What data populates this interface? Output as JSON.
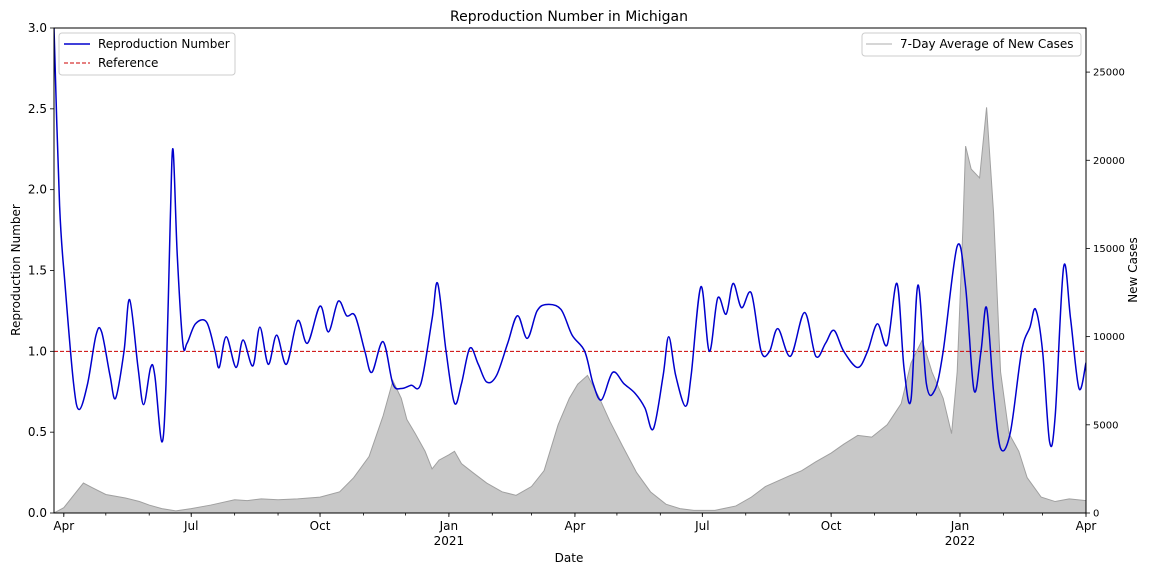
{
  "chart_data": {
    "type": "line",
    "title": "Reproduction Number in Michigan",
    "xlabel": "Date",
    "ylabel": "Reproduction Number",
    "y2label": "New Cases",
    "xlim": [
      "2020-03-25",
      "2022-04-01"
    ],
    "ylim": [
      0,
      3.0
    ],
    "y2lim": [
      0,
      27500
    ],
    "grid": false,
    "x_ticks_major": [
      {
        "date": "2020-04-01",
        "label": "Apr",
        "sub": ""
      },
      {
        "date": "2020-07-01",
        "label": "Jul",
        "sub": ""
      },
      {
        "date": "2020-10-01",
        "label": "Oct",
        "sub": ""
      },
      {
        "date": "2021-01-01",
        "label": "Jan",
        "sub": "2021"
      },
      {
        "date": "2021-04-01",
        "label": "Apr",
        "sub": ""
      },
      {
        "date": "2021-07-01",
        "label": "Jul",
        "sub": ""
      },
      {
        "date": "2021-10-01",
        "label": "Oct",
        "sub": ""
      },
      {
        "date": "2022-01-01",
        "label": "Jan",
        "sub": "2022"
      },
      {
        "date": "2022-04-01",
        "label": "Apr",
        "sub": ""
      }
    ],
    "y_ticks": [
      "0.0",
      "0.5",
      "1.0",
      "1.5",
      "2.0",
      "2.5",
      "3.0"
    ],
    "y2_ticks": [
      "0",
      "5000",
      "10000",
      "15000",
      "20000",
      "25000"
    ],
    "legend_left": {
      "placement": "top-left",
      "entries": [
        "Reproduction Number",
        "Reference"
      ]
    },
    "legend_right": {
      "placement": "top-right",
      "entries": [
        "7-Day Average of New Cases"
      ]
    },
    "colors": {
      "rt": "#0000cd",
      "reference": "#cc0000",
      "cases_fill": "#c8c8c8",
      "cases_line": "#a0a0a0"
    },
    "reference_value": 1.0,
    "series": [
      {
        "name": "Reproduction Number",
        "axis": "left",
        "points": [
          [
            "2020-03-25",
            3.0
          ],
          [
            "2020-03-29",
            1.9
          ],
          [
            "2020-04-02",
            1.4
          ],
          [
            "2020-04-08",
            0.8
          ],
          [
            "2020-04-12",
            0.64
          ],
          [
            "2020-04-18",
            0.8
          ],
          [
            "2020-04-24",
            1.1
          ],
          [
            "2020-04-28",
            1.12
          ],
          [
            "2020-05-04",
            0.85
          ],
          [
            "2020-05-08",
            0.71
          ],
          [
            "2020-05-14",
            1.0
          ],
          [
            "2020-05-18",
            1.32
          ],
          [
            "2020-05-24",
            0.9
          ],
          [
            "2020-05-28",
            0.67
          ],
          [
            "2020-06-02",
            0.9
          ],
          [
            "2020-06-05",
            0.85
          ],
          [
            "2020-06-10",
            0.44
          ],
          [
            "2020-06-13",
            0.8
          ],
          [
            "2020-06-16",
            1.8
          ],
          [
            "2020-06-18",
            2.25
          ],
          [
            "2020-06-21",
            1.6
          ],
          [
            "2020-06-25",
            1.05
          ],
          [
            "2020-06-28",
            1.05
          ],
          [
            "2020-07-04",
            1.17
          ],
          [
            "2020-07-12",
            1.18
          ],
          [
            "2020-07-18",
            1.0
          ],
          [
            "2020-07-21",
            0.9
          ],
          [
            "2020-07-26",
            1.09
          ],
          [
            "2020-08-02",
            0.9
          ],
          [
            "2020-08-07",
            1.07
          ],
          [
            "2020-08-14",
            0.91
          ],
          [
            "2020-08-19",
            1.15
          ],
          [
            "2020-08-25",
            0.92
          ],
          [
            "2020-08-31",
            1.1
          ],
          [
            "2020-09-07",
            0.92
          ],
          [
            "2020-09-15",
            1.19
          ],
          [
            "2020-09-22",
            1.05
          ],
          [
            "2020-10-01",
            1.28
          ],
          [
            "2020-10-07",
            1.12
          ],
          [
            "2020-10-14",
            1.31
          ],
          [
            "2020-10-20",
            1.22
          ],
          [
            "2020-10-26",
            1.22
          ],
          [
            "2020-11-02",
            1.0
          ],
          [
            "2020-11-07",
            0.87
          ],
          [
            "2020-11-15",
            1.06
          ],
          [
            "2020-11-22",
            0.8
          ],
          [
            "2020-11-28",
            0.77
          ],
          [
            "2020-12-05",
            0.79
          ],
          [
            "2020-12-12",
            0.8
          ],
          [
            "2020-12-20",
            1.2
          ],
          [
            "2020-12-24",
            1.42
          ],
          [
            "2020-12-30",
            1.0
          ],
          [
            "2021-01-05",
            0.68
          ],
          [
            "2021-01-10",
            0.8
          ],
          [
            "2021-01-16",
            1.02
          ],
          [
            "2021-01-22",
            0.92
          ],
          [
            "2021-01-28",
            0.81
          ],
          [
            "2021-02-04",
            0.85
          ],
          [
            "2021-02-12",
            1.05
          ],
          [
            "2021-02-19",
            1.22
          ],
          [
            "2021-02-26",
            1.08
          ],
          [
            "2021-03-05",
            1.25
          ],
          [
            "2021-03-12",
            1.29
          ],
          [
            "2021-03-22",
            1.26
          ],
          [
            "2021-03-30",
            1.1
          ],
          [
            "2021-04-08",
            1.0
          ],
          [
            "2021-04-14",
            0.8
          ],
          [
            "2021-04-20",
            0.7
          ],
          [
            "2021-04-28",
            0.87
          ],
          [
            "2021-05-06",
            0.8
          ],
          [
            "2021-05-14",
            0.74
          ],
          [
            "2021-05-21",
            0.65
          ],
          [
            "2021-05-27",
            0.52
          ],
          [
            "2021-06-03",
            0.85
          ],
          [
            "2021-06-07",
            1.09
          ],
          [
            "2021-06-12",
            0.85
          ],
          [
            "2021-06-19",
            0.66
          ],
          [
            "2021-06-23",
            0.85
          ],
          [
            "2021-06-30",
            1.4
          ],
          [
            "2021-07-06",
            1.0
          ],
          [
            "2021-07-12",
            1.33
          ],
          [
            "2021-07-18",
            1.23
          ],
          [
            "2021-07-23",
            1.42
          ],
          [
            "2021-07-29",
            1.27
          ],
          [
            "2021-08-05",
            1.36
          ],
          [
            "2021-08-12",
            1.0
          ],
          [
            "2021-08-18",
            1.0
          ],
          [
            "2021-08-24",
            1.14
          ],
          [
            "2021-09-02",
            0.97
          ],
          [
            "2021-09-12",
            1.24
          ],
          [
            "2021-09-20",
            0.97
          ],
          [
            "2021-09-27",
            1.05
          ],
          [
            "2021-10-03",
            1.13
          ],
          [
            "2021-10-10",
            1.0
          ],
          [
            "2021-10-20",
            0.9
          ],
          [
            "2021-10-27",
            1.0
          ],
          [
            "2021-11-03",
            1.17
          ],
          [
            "2021-11-10",
            1.04
          ],
          [
            "2021-11-17",
            1.42
          ],
          [
            "2021-11-22",
            0.9
          ],
          [
            "2021-11-27",
            0.7
          ],
          [
            "2021-12-02",
            1.41
          ],
          [
            "2021-12-08",
            0.8
          ],
          [
            "2021-12-14",
            0.76
          ],
          [
            "2021-12-20",
            1.0
          ],
          [
            "2021-12-30",
            1.65
          ],
          [
            "2022-01-05",
            1.4
          ],
          [
            "2022-01-11",
            0.76
          ],
          [
            "2022-01-16",
            1.0
          ],
          [
            "2022-01-20",
            1.27
          ],
          [
            "2022-01-25",
            0.75
          ],
          [
            "2022-01-30",
            0.4
          ],
          [
            "2022-02-06",
            0.5
          ],
          [
            "2022-02-14",
            1.0
          ],
          [
            "2022-02-20",
            1.15
          ],
          [
            "2022-02-24",
            1.26
          ],
          [
            "2022-03-01",
            1.0
          ],
          [
            "2022-03-06",
            0.44
          ],
          [
            "2022-03-10",
            0.6
          ],
          [
            "2022-03-16",
            1.52
          ],
          [
            "2022-03-21",
            1.2
          ],
          [
            "2022-03-27",
            0.77
          ],
          [
            "2022-04-01",
            0.93
          ]
        ]
      },
      {
        "name": "7-Day Average of New Cases",
        "axis": "right",
        "points": [
          [
            "2020-03-25",
            0
          ],
          [
            "2020-04-01",
            300
          ],
          [
            "2020-04-08",
            1000
          ],
          [
            "2020-04-15",
            1700
          ],
          [
            "2020-04-21",
            1450
          ],
          [
            "2020-05-01",
            1050
          ],
          [
            "2020-05-15",
            850
          ],
          [
            "2020-05-25",
            650
          ],
          [
            "2020-06-01",
            450
          ],
          [
            "2020-06-10",
            250
          ],
          [
            "2020-06-20",
            120
          ],
          [
            "2020-07-01",
            250
          ],
          [
            "2020-07-15",
            450
          ],
          [
            "2020-08-01",
            750
          ],
          [
            "2020-08-10",
            700
          ],
          [
            "2020-08-20",
            800
          ],
          [
            "2020-09-01",
            750
          ],
          [
            "2020-09-15",
            800
          ],
          [
            "2020-10-01",
            900
          ],
          [
            "2020-10-15",
            1200
          ],
          [
            "2020-10-25",
            2000
          ],
          [
            "2020-11-05",
            3200
          ],
          [
            "2020-11-15",
            5500
          ],
          [
            "2020-11-22",
            7500
          ],
          [
            "2020-11-28",
            6500
          ],
          [
            "2020-12-02",
            5300
          ],
          [
            "2020-12-08",
            4500
          ],
          [
            "2020-12-15",
            3500
          ],
          [
            "2020-12-20",
            2500
          ],
          [
            "2020-12-25",
            3000
          ],
          [
            "2021-01-01",
            3300
          ],
          [
            "2021-01-05",
            3500
          ],
          [
            "2021-01-10",
            2800
          ],
          [
            "2021-01-18",
            2300
          ],
          [
            "2021-01-28",
            1700
          ],
          [
            "2021-02-08",
            1200
          ],
          [
            "2021-02-18",
            1000
          ],
          [
            "2021-03-01",
            1500
          ],
          [
            "2021-03-10",
            2400
          ],
          [
            "2021-03-20",
            5000
          ],
          [
            "2021-03-28",
            6500
          ],
          [
            "2021-04-03",
            7300
          ],
          [
            "2021-04-10",
            7800
          ],
          [
            "2021-04-18",
            6600
          ],
          [
            "2021-04-26",
            5200
          ],
          [
            "2021-05-05",
            3800
          ],
          [
            "2021-05-15",
            2300
          ],
          [
            "2021-05-25",
            1200
          ],
          [
            "2021-06-05",
            500
          ],
          [
            "2021-06-15",
            250
          ],
          [
            "2021-06-25",
            150
          ],
          [
            "2021-07-10",
            150
          ],
          [
            "2021-07-25",
            400
          ],
          [
            "2021-08-05",
            900
          ],
          [
            "2021-08-15",
            1500
          ],
          [
            "2021-09-01",
            2100
          ],
          [
            "2021-09-10",
            2400
          ],
          [
            "2021-09-20",
            2900
          ],
          [
            "2021-10-01",
            3400
          ],
          [
            "2021-10-10",
            3900
          ],
          [
            "2021-10-20",
            4400
          ],
          [
            "2021-10-30",
            4300
          ],
          [
            "2021-11-10",
            5000
          ],
          [
            "2021-11-20",
            6200
          ],
          [
            "2021-11-27",
            8500
          ],
          [
            "2021-12-05",
            9800
          ],
          [
            "2021-12-12",
            8000
          ],
          [
            "2021-12-20",
            6500
          ],
          [
            "2021-12-26",
            4500
          ],
          [
            "2021-12-30",
            8000
          ],
          [
            "2022-01-03",
            16000
          ],
          [
            "2022-01-05",
            20800
          ],
          [
            "2022-01-09",
            19500
          ],
          [
            "2022-01-15",
            19000
          ],
          [
            "2022-01-20",
            23000
          ],
          [
            "2022-01-25",
            17000
          ],
          [
            "2022-01-30",
            8000
          ],
          [
            "2022-02-05",
            4500
          ],
          [
            "2022-02-12",
            3500
          ],
          [
            "2022-02-18",
            2000
          ],
          [
            "2022-02-28",
            900
          ],
          [
            "2022-03-10",
            650
          ],
          [
            "2022-03-20",
            800
          ],
          [
            "2022-04-01",
            700
          ]
        ]
      }
    ]
  }
}
